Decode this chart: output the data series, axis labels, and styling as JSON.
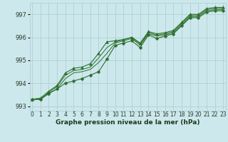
{
  "title": "Graphe pression niveau de la mer (hPa)",
  "background_color": "#cce8ec",
  "grid_color": "#aacccc",
  "line_color": "#2d6e2d",
  "ylim": [
    992.8,
    997.5
  ],
  "yticks": [
    993,
    994,
    995,
    996,
    997
  ],
  "xlim": [
    -0.3,
    23.3
  ],
  "x_labels": [
    "0",
    "1",
    "2",
    "3",
    "4",
    "5",
    "6",
    "7",
    "8",
    "9",
    "10",
    "11",
    "12",
    "13",
    "14",
    "15",
    "16",
    "17",
    "18",
    "19",
    "20",
    "21",
    "22",
    "23"
  ],
  "series": [
    [
      993.3,
      993.3,
      993.55,
      993.75,
      994.0,
      994.1,
      994.2,
      994.35,
      994.5,
      995.05,
      995.65,
      995.75,
      995.85,
      995.55,
      996.1,
      995.95,
      996.05,
      996.15,
      996.5,
      996.85,
      996.85,
      997.1,
      997.15,
      997.15
    ],
    [
      993.3,
      993.3,
      993.55,
      993.75,
      994.2,
      994.45,
      994.5,
      994.6,
      994.9,
      995.3,
      995.75,
      995.85,
      995.95,
      995.65,
      996.15,
      996.05,
      996.1,
      996.2,
      996.55,
      996.9,
      996.9,
      997.15,
      997.2,
      997.2
    ],
    [
      993.3,
      993.3,
      993.6,
      993.85,
      994.35,
      994.55,
      994.6,
      994.7,
      995.1,
      995.55,
      995.8,
      995.9,
      996.0,
      995.7,
      996.2,
      996.1,
      996.15,
      996.25,
      996.6,
      996.95,
      996.95,
      997.2,
      997.25,
      997.25
    ],
    [
      993.3,
      993.35,
      993.65,
      993.9,
      994.45,
      994.65,
      994.7,
      994.85,
      995.3,
      995.8,
      995.85,
      995.9,
      996.0,
      995.75,
      996.25,
      996.15,
      996.2,
      996.3,
      996.65,
      997.0,
      997.0,
      997.25,
      997.3,
      997.3
    ]
  ],
  "marker_series": [
    0,
    2
  ],
  "markers": [
    "D",
    "^"
  ],
  "marker_size": 2.5,
  "title_fontsize": 6.5,
  "tick_fontsize": 5.5
}
